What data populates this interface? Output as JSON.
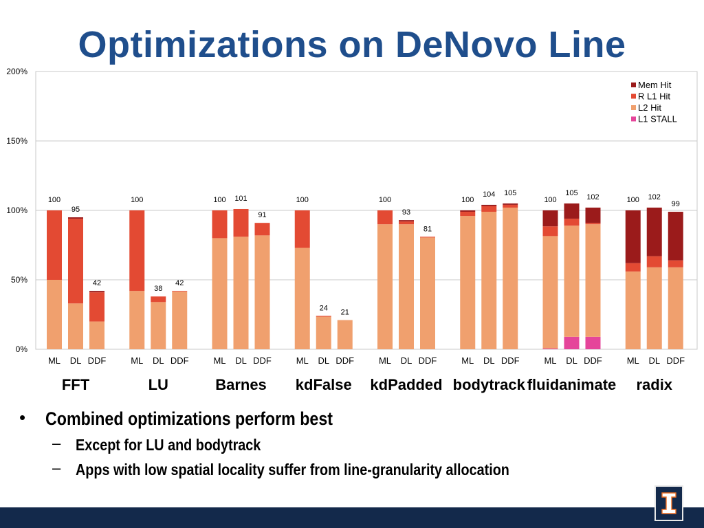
{
  "title": "Optimizations on DeNovo Line",
  "bullets": {
    "main": "Combined optimizations perform best",
    "sub": [
      "Except for LU and bodytrack",
      "Apps with low spatial locality suffer from line-granularity allocation"
    ],
    "bullet_glyph": "•",
    "dash_glyph": "–"
  },
  "logo": {
    "icon": "university-block-i-logo",
    "glyph": "I"
  },
  "chart_data": {
    "type": "bar",
    "stacked": true,
    "ylim": [
      0,
      200
    ],
    "yticks": [
      "0%",
      "50%",
      "100%",
      "150%",
      "200%"
    ],
    "ytick_values": [
      0,
      50,
      100,
      150,
      200
    ],
    "grid": true,
    "legend_position": "top-right",
    "series": [
      {
        "name": "Mem Hit",
        "color": "#9b1b1b"
      },
      {
        "name": "R L1 Hit",
        "color": "#e34a33"
      },
      {
        "name": "L2 Hit",
        "color": "#f0a06e"
      },
      {
        "name": "L1 STALL",
        "color": "#e5459a"
      }
    ],
    "bar_labels": [
      "ML",
      "DL",
      "DDF"
    ],
    "groups": [
      {
        "name": "FFT",
        "bars": [
          {
            "label": "ML",
            "total": 100,
            "l1_stall": 0,
            "l2_hit": 50,
            "r_l1_hit": 50,
            "mem_hit": 0
          },
          {
            "label": "DL",
            "total": 95,
            "l1_stall": 0,
            "l2_hit": 33,
            "r_l1_hit": 61,
            "mem_hit": 1
          },
          {
            "label": "DDF",
            "total": 42,
            "l1_stall": 0,
            "l2_hit": 20,
            "r_l1_hit": 21,
            "mem_hit": 1
          }
        ]
      },
      {
        "name": "LU",
        "bars": [
          {
            "label": "ML",
            "total": 100,
            "l1_stall": 0,
            "l2_hit": 42,
            "r_l1_hit": 58,
            "mem_hit": 0
          },
          {
            "label": "DL",
            "total": 38,
            "l1_stall": 0,
            "l2_hit": 34,
            "r_l1_hit": 4,
            "mem_hit": 0
          },
          {
            "label": "DDF",
            "total": 42,
            "l1_stall": 0,
            "l2_hit": 41.5,
            "r_l1_hit": 0.5,
            "mem_hit": 0
          }
        ]
      },
      {
        "name": "Barnes",
        "bars": [
          {
            "label": "ML",
            "total": 100,
            "l1_stall": 0,
            "l2_hit": 80,
            "r_l1_hit": 20,
            "mem_hit": 0
          },
          {
            "label": "DL",
            "total": 101,
            "l1_stall": 0,
            "l2_hit": 81,
            "r_l1_hit": 20,
            "mem_hit": 0
          },
          {
            "label": "DDF",
            "total": 91,
            "l1_stall": 0,
            "l2_hit": 82,
            "r_l1_hit": 9,
            "mem_hit": 0
          }
        ]
      },
      {
        "name": "kdFalse",
        "bars": [
          {
            "label": "ML",
            "total": 100,
            "l1_stall": 0,
            "l2_hit": 73,
            "r_l1_hit": 27,
            "mem_hit": 0
          },
          {
            "label": "DL",
            "total": 24,
            "l1_stall": 0,
            "l2_hit": 23.5,
            "r_l1_hit": 0.5,
            "mem_hit": 0
          },
          {
            "label": "DDF",
            "total": 21,
            "l1_stall": 0,
            "l2_hit": 21,
            "r_l1_hit": 0,
            "mem_hit": 0
          }
        ]
      },
      {
        "name": "kdPadded",
        "bars": [
          {
            "label": "ML",
            "total": 100,
            "l1_stall": 0,
            "l2_hit": 90,
            "r_l1_hit": 10,
            "mem_hit": 0
          },
          {
            "label": "DL",
            "total": 93,
            "l1_stall": 0,
            "l2_hit": 90,
            "r_l1_hit": 2,
            "mem_hit": 1
          },
          {
            "label": "DDF",
            "total": 81,
            "l1_stall": 0,
            "l2_hit": 80.5,
            "r_l1_hit": 0.5,
            "mem_hit": 0
          }
        ]
      },
      {
        "name": "bodytrack",
        "bars": [
          {
            "label": "ML",
            "total": 100,
            "l1_stall": 0,
            "l2_hit": 96,
            "r_l1_hit": 3,
            "mem_hit": 1
          },
          {
            "label": "DL",
            "total": 104,
            "l1_stall": 0,
            "l2_hit": 99,
            "r_l1_hit": 4,
            "mem_hit": 1
          },
          {
            "label": "DDF",
            "total": 105,
            "l1_stall": 0,
            "l2_hit": 102,
            "r_l1_hit": 2,
            "mem_hit": 1
          }
        ]
      },
      {
        "name": "fluidanimate",
        "bars": [
          {
            "label": "ML",
            "total": 100,
            "l1_stall": 0.5,
            "l2_hit": 81,
            "r_l1_hit": 7,
            "mem_hit": 11.5
          },
          {
            "label": "DL",
            "total": 105,
            "l1_stall": 9,
            "l2_hit": 80,
            "r_l1_hit": 5,
            "mem_hit": 11
          },
          {
            "label": "DDF",
            "total": 102,
            "l1_stall": 9,
            "l2_hit": 81,
            "r_l1_hit": 1,
            "mem_hit": 11
          }
        ]
      },
      {
        "name": "radix",
        "bars": [
          {
            "label": "ML",
            "total": 100,
            "l1_stall": 0,
            "l2_hit": 56,
            "r_l1_hit": 6,
            "mem_hit": 38
          },
          {
            "label": "DL",
            "total": 102,
            "l1_stall": 0,
            "l2_hit": 59,
            "r_l1_hit": 8,
            "mem_hit": 35
          },
          {
            "label": "DDF",
            "total": 99,
            "l1_stall": 0,
            "l2_hit": 59,
            "r_l1_hit": 5,
            "mem_hit": 35
          }
        ]
      }
    ]
  }
}
